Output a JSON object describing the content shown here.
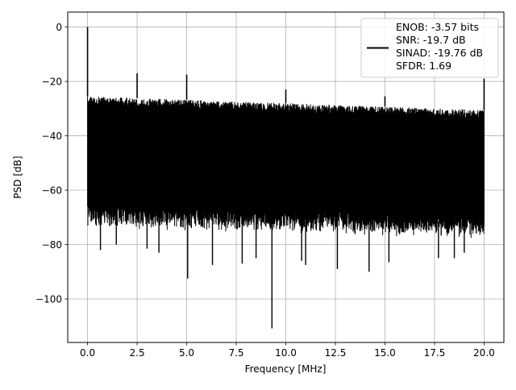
{
  "chart_data": {
    "type": "line",
    "title": "",
    "xlabel": "Frequency [MHz]",
    "ylabel": "PSD [dB]",
    "xlim": [
      -1.0,
      21.0
    ],
    "ylim": [
      -116.0,
      5.5
    ],
    "xticks": [
      0.0,
      2.5,
      5.0,
      7.5,
      10.0,
      12.5,
      15.0,
      17.5,
      20.0
    ],
    "xtick_labels": [
      "0.0",
      "2.5",
      "5.0",
      "7.5",
      "10.0",
      "12.5",
      "15.0",
      "17.5",
      "20.0"
    ],
    "yticks": [
      0,
      -20,
      -40,
      -60,
      -80,
      -100
    ],
    "ytick_labels": [
      "0",
      "−20",
      "−40",
      "−60",
      "−80",
      "−100"
    ],
    "grid": true,
    "line_color": "#000000",
    "legend": {
      "placement": "top-right",
      "entries": [
        "ENOB: -3.57 bits",
        "SNR: -19.7 dB",
        "SINAD: -19.76 dB",
        "SFDR: 1.69"
      ]
    },
    "noise_floor_upper_db": {
      "x": [
        0.0,
        20.0
      ],
      "y": [
        -25.5,
        -30.5
      ]
    },
    "noise_floor_lower_db": {
      "x": [
        0.0,
        20.0
      ],
      "y": [
        -68.0,
        -72.0
      ]
    },
    "spikes": [
      {
        "x": 0.0,
        "y": 0.0
      },
      {
        "x": 2.5,
        "y": -17.0
      },
      {
        "x": 5.0,
        "y": -17.5
      },
      {
        "x": 10.0,
        "y": -23.0
      },
      {
        "x": 15.0,
        "y": -25.5
      },
      {
        "x": 20.0,
        "y": -19.0
      }
    ],
    "dips": [
      {
        "x": 0.65,
        "y": -82.0
      },
      {
        "x": 1.45,
        "y": -80.0
      },
      {
        "x": 3.0,
        "y": -81.5
      },
      {
        "x": 3.6,
        "y": -83.0
      },
      {
        "x": 5.05,
        "y": -92.5
      },
      {
        "x": 6.3,
        "y": -87.5
      },
      {
        "x": 7.8,
        "y": -87.0
      },
      {
        "x": 8.5,
        "y": -85.0
      },
      {
        "x": 9.3,
        "y": -110.8
      },
      {
        "x": 10.8,
        "y": -86.0
      },
      {
        "x": 11.0,
        "y": -87.5
      },
      {
        "x": 12.6,
        "y": -89.0
      },
      {
        "x": 14.2,
        "y": -90.0
      },
      {
        "x": 15.2,
        "y": -86.5
      },
      {
        "x": 17.7,
        "y": -85.0
      },
      {
        "x": 18.5,
        "y": -85.0
      },
      {
        "x": 19.0,
        "y": -83.0
      }
    ]
  }
}
